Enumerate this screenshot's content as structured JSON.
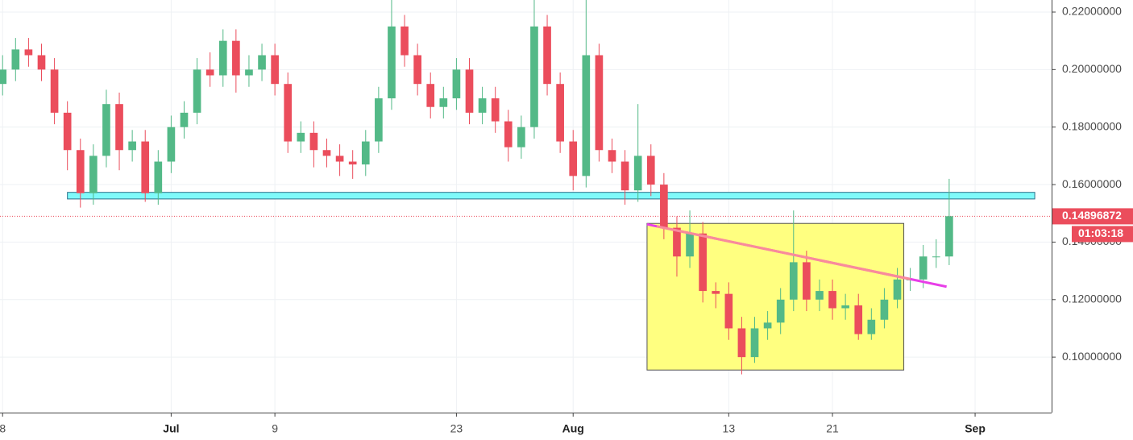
{
  "chart_data": {
    "type": "candlestick",
    "x": [
      -13,
      -12,
      -11,
      -10,
      -9,
      -8,
      -7,
      -6,
      -5,
      -4,
      -3,
      -2,
      -1,
      0,
      1,
      2,
      3,
      4,
      5,
      6,
      7,
      8,
      9,
      10,
      11,
      12,
      13,
      14,
      15,
      16,
      17,
      18,
      19,
      20,
      21,
      22,
      23,
      24,
      25,
      26,
      27,
      28,
      29,
      30,
      31,
      32,
      33,
      34,
      35,
      36,
      37,
      38,
      39,
      40,
      41,
      42,
      43,
      44,
      45,
      46,
      47,
      48,
      49,
      50,
      51,
      52,
      53,
      54,
      55,
      56,
      57,
      58,
      59,
      60
    ],
    "open": [
      0.195,
      0.2,
      0.207,
      0.205,
      0.2,
      0.185,
      0.172,
      0.157,
      0.17,
      0.188,
      0.172,
      0.175,
      0.157,
      0.168,
      0.18,
      0.185,
      0.2,
      0.198,
      0.21,
      0.198,
      0.2,
      0.205,
      0.195,
      0.175,
      0.178,
      0.172,
      0.17,
      0.168,
      0.167,
      0.175,
      0.19,
      0.215,
      0.205,
      0.195,
      0.187,
      0.19,
      0.2,
      0.185,
      0.19,
      0.182,
      0.173,
      0.18,
      0.215,
      0.195,
      0.175,
      0.163,
      0.205,
      0.172,
      0.168,
      0.158,
      0.17,
      0.16,
      0.145,
      0.135,
      0.143,
      0.123,
      0.122,
      0.11,
      0.1,
      0.11,
      0.112,
      0.12,
      0.133,
      0.12,
      0.123,
      0.117,
      0.118,
      0.108,
      0.113,
      0.12,
      0.127,
      0.127,
      0.135,
      0.135
    ],
    "high": [
      0.205,
      0.211,
      0.211,
      0.209,
      0.204,
      0.189,
      0.176,
      0.174,
      0.193,
      0.192,
      0.179,
      0.179,
      0.172,
      0.184,
      0.189,
      0.204,
      0.206,
      0.214,
      0.214,
      0.205,
      0.209,
      0.209,
      0.199,
      0.182,
      0.182,
      0.176,
      0.174,
      0.172,
      0.179,
      0.194,
      0.225,
      0.219,
      0.209,
      0.199,
      0.194,
      0.204,
      0.204,
      0.194,
      0.194,
      0.186,
      0.184,
      0.225,
      0.219,
      0.199,
      0.179,
      0.225,
      0.209,
      0.176,
      0.172,
      0.188,
      0.174,
      0.164,
      0.149,
      0.151,
      0.147,
      0.126,
      0.126,
      0.114,
      0.114,
      0.116,
      0.124,
      0.151,
      0.137,
      0.127,
      0.127,
      0.122,
      0.122,
      0.117,
      0.124,
      0.131,
      0.131,
      0.139,
      0.141,
      0.162
    ],
    "low": [
      0.191,
      0.196,
      0.201,
      0.196,
      0.181,
      0.165,
      0.152,
      0.153,
      0.166,
      0.165,
      0.168,
      0.154,
      0.153,
      0.164,
      0.176,
      0.181,
      0.194,
      0.194,
      0.192,
      0.194,
      0.196,
      0.191,
      0.171,
      0.171,
      0.166,
      0.166,
      0.163,
      0.162,
      0.163,
      0.171,
      0.186,
      0.201,
      0.191,
      0.183,
      0.183,
      0.186,
      0.181,
      0.181,
      0.178,
      0.168,
      0.169,
      0.176,
      0.191,
      0.171,
      0.158,
      0.159,
      0.168,
      0.164,
      0.153,
      0.154,
      0.156,
      0.141,
      0.128,
      0.131,
      0.119,
      0.117,
      0.106,
      0.094,
      0.098,
      0.106,
      0.108,
      0.116,
      0.116,
      0.116,
      0.113,
      0.113,
      0.106,
      0.106,
      0.11,
      0.117,
      0.123,
      0.124,
      0.131,
      0.132
    ],
    "close": [
      0.2,
      0.207,
      0.205,
      0.2,
      0.185,
      0.172,
      0.157,
      0.17,
      0.188,
      0.172,
      0.175,
      0.157,
      0.168,
      0.18,
      0.185,
      0.2,
      0.198,
      0.21,
      0.198,
      0.2,
      0.205,
      0.195,
      0.175,
      0.178,
      0.172,
      0.17,
      0.168,
      0.167,
      0.175,
      0.19,
      0.215,
      0.205,
      0.195,
      0.187,
      0.19,
      0.2,
      0.185,
      0.19,
      0.182,
      0.173,
      0.18,
      0.215,
      0.195,
      0.175,
      0.163,
      0.205,
      0.172,
      0.168,
      0.158,
      0.17,
      0.16,
      0.145,
      0.135,
      0.143,
      0.123,
      0.122,
      0.11,
      0.1,
      0.11,
      0.112,
      0.12,
      0.133,
      0.12,
      0.123,
      0.117,
      0.118,
      0.108,
      0.113,
      0.12,
      0.127,
      0.127,
      0.135,
      0.135,
      0.149
    ],
    "up_color": "#53b987",
    "down_color": "#eb4d5c",
    "xlim": [
      -13.2,
      67.9
    ],
    "xticks": [
      {
        "value": -13,
        "label": "8"
      },
      {
        "value": 0,
        "label": "Jul"
      },
      {
        "value": 8,
        "label": "9"
      },
      {
        "value": 22,
        "label": "23"
      },
      {
        "value": 31,
        "label": "Aug"
      },
      {
        "value": 43,
        "label": "13"
      },
      {
        "value": 51,
        "label": "21"
      },
      {
        "value": 62,
        "label": "Sep"
      }
    ],
    "ylim": [
      0.0807,
      0.2242
    ],
    "yticks": [
      {
        "value": 0.1,
        "label": "0.10000000"
      },
      {
        "value": 0.12,
        "label": "0.12000000"
      },
      {
        "value": 0.14,
        "label": "0.14000000"
      },
      {
        "value": 0.16,
        "label": "0.16000000"
      },
      {
        "value": 0.18,
        "label": "0.18000000"
      },
      {
        "value": 0.2,
        "label": "0.20000000"
      },
      {
        "value": 0.22,
        "label": "0.22000000"
      }
    ],
    "grid": true,
    "support_zone": {
      "x": [
        -8,
        66.6
      ],
      "y": [
        0.155,
        0.1573
      ],
      "color": "#7ffafa"
    },
    "pattern_box": {
      "x": [
        36.7,
        56.5
      ],
      "y": [
        0.0955,
        0.1465
      ],
      "color": "#ffff80"
    },
    "neckline": {
      "x": [
        36.7,
        59.8
      ],
      "y": [
        0.1462,
        0.1245
      ],
      "color": "#f98b9a"
    },
    "last_price": 0.14896872,
    "last_price_color": "#eb4d5c",
    "countdown": "01:03:18"
  }
}
